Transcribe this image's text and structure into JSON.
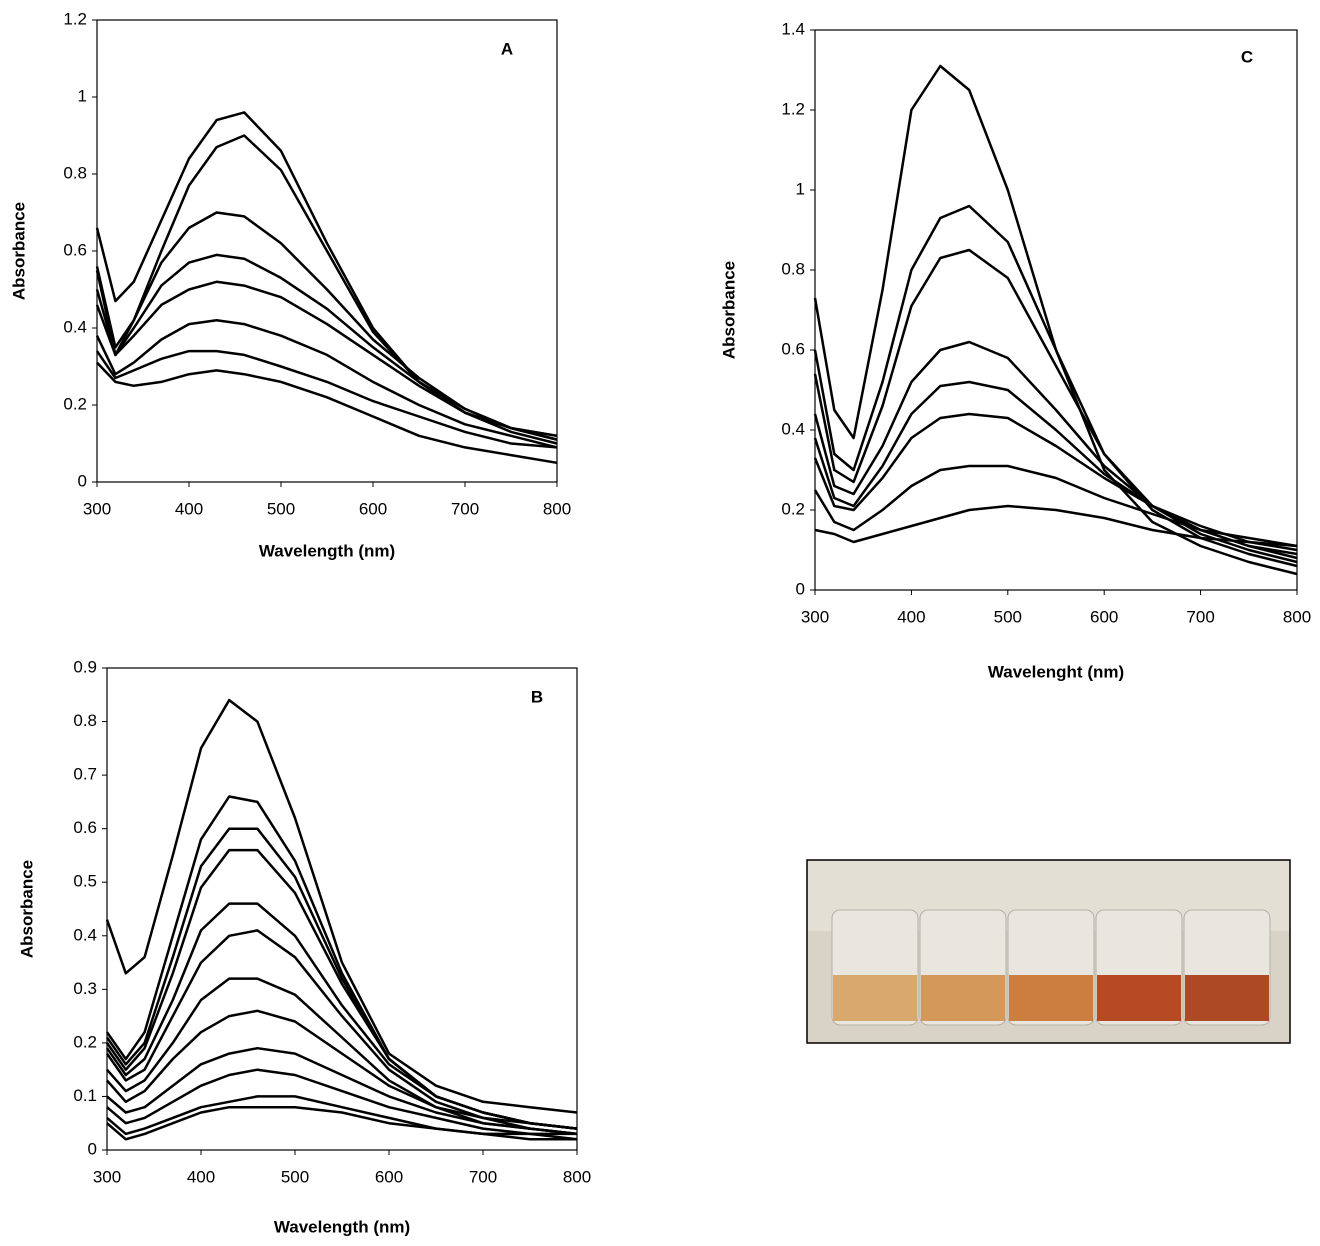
{
  "chart_data": [
    {
      "type": "line",
      "annotation": "A",
      "xlabel": "Wavelength (nm)",
      "ylabel": "Absorbance",
      "color": "#000000",
      "x": [
        300,
        320,
        340,
        370,
        400,
        430,
        460,
        500,
        550,
        600,
        650,
        700,
        750,
        800
      ],
      "series": [
        {
          "values": [
            0.66,
            0.47,
            0.52,
            0.68,
            0.84,
            0.94,
            0.96,
            0.86,
            0.62,
            0.4,
            0.26,
            0.18,
            0.14,
            0.11
          ]
        },
        {
          "values": [
            0.56,
            0.35,
            0.42,
            0.6,
            0.77,
            0.87,
            0.9,
            0.81,
            0.6,
            0.39,
            0.26,
            0.18,
            0.14,
            0.12
          ]
        },
        {
          "values": [
            0.55,
            0.33,
            0.42,
            0.57,
            0.66,
            0.7,
            0.69,
            0.62,
            0.5,
            0.37,
            0.27,
            0.19,
            0.14,
            0.12
          ]
        },
        {
          "values": [
            0.5,
            0.33,
            0.4,
            0.51,
            0.57,
            0.59,
            0.58,
            0.53,
            0.45,
            0.35,
            0.26,
            0.19,
            0.14,
            0.11
          ]
        },
        {
          "values": [
            0.46,
            0.33,
            0.38,
            0.46,
            0.5,
            0.52,
            0.51,
            0.48,
            0.41,
            0.33,
            0.25,
            0.18,
            0.13,
            0.1
          ]
        },
        {
          "values": [
            0.38,
            0.28,
            0.31,
            0.37,
            0.41,
            0.42,
            0.41,
            0.38,
            0.33,
            0.26,
            0.2,
            0.15,
            0.12,
            0.09
          ]
        },
        {
          "values": [
            0.34,
            0.27,
            0.29,
            0.32,
            0.34,
            0.34,
            0.33,
            0.3,
            0.26,
            0.21,
            0.17,
            0.13,
            0.1,
            0.09
          ]
        },
        {
          "values": [
            0.31,
            0.26,
            0.25,
            0.26,
            0.28,
            0.29,
            0.28,
            0.26,
            0.22,
            0.17,
            0.12,
            0.09,
            0.07,
            0.05
          ]
        }
      ],
      "xlim": [
        300,
        800
      ],
      "xticks": [
        300,
        400,
        500,
        600,
        700,
        800
      ],
      "ylim": [
        0,
        1.2
      ],
      "yticks": [
        0,
        0.2,
        0.4,
        0.6,
        0.8,
        1,
        1.2
      ]
    },
    {
      "type": "line",
      "annotation": "B",
      "xlabel": "Wavelength (nm)",
      "ylabel": "Absorbance",
      "color": "#000000",
      "x": [
        300,
        320,
        340,
        370,
        400,
        430,
        460,
        500,
        550,
        600,
        650,
        700,
        750,
        800
      ],
      "series": [
        {
          "values": [
            0.43,
            0.33,
            0.36,
            0.55,
            0.75,
            0.84,
            0.8,
            0.62,
            0.35,
            0.18,
            0.12,
            0.09,
            0.08,
            0.07
          ]
        },
        {
          "values": [
            0.22,
            0.17,
            0.22,
            0.4,
            0.58,
            0.66,
            0.65,
            0.54,
            0.33,
            0.17,
            0.1,
            0.07,
            0.05,
            0.04
          ]
        },
        {
          "values": [
            0.21,
            0.16,
            0.2,
            0.36,
            0.53,
            0.6,
            0.6,
            0.51,
            0.32,
            0.17,
            0.1,
            0.07,
            0.05,
            0.04
          ]
        },
        {
          "values": [
            0.2,
            0.15,
            0.19,
            0.33,
            0.49,
            0.56,
            0.56,
            0.48,
            0.31,
            0.17,
            0.1,
            0.07,
            0.05,
            0.04
          ]
        },
        {
          "values": [
            0.19,
            0.14,
            0.17,
            0.28,
            0.41,
            0.46,
            0.46,
            0.4,
            0.27,
            0.16,
            0.1,
            0.07,
            0.05,
            0.04
          ]
        },
        {
          "values": [
            0.18,
            0.13,
            0.15,
            0.25,
            0.35,
            0.4,
            0.41,
            0.36,
            0.25,
            0.15,
            0.09,
            0.06,
            0.05,
            0.04
          ]
        },
        {
          "values": [
            0.15,
            0.11,
            0.13,
            0.2,
            0.28,
            0.32,
            0.32,
            0.29,
            0.21,
            0.13,
            0.08,
            0.06,
            0.04,
            0.03
          ]
        },
        {
          "values": [
            0.13,
            0.09,
            0.11,
            0.17,
            0.22,
            0.25,
            0.26,
            0.24,
            0.18,
            0.12,
            0.08,
            0.05,
            0.04,
            0.03
          ]
        },
        {
          "values": [
            0.1,
            0.07,
            0.08,
            0.12,
            0.16,
            0.18,
            0.19,
            0.18,
            0.14,
            0.1,
            0.07,
            0.05,
            0.04,
            0.03
          ]
        },
        {
          "values": [
            0.08,
            0.05,
            0.06,
            0.09,
            0.12,
            0.14,
            0.15,
            0.14,
            0.11,
            0.08,
            0.06,
            0.04,
            0.03,
            0.03
          ]
        },
        {
          "values": [
            0.06,
            0.03,
            0.04,
            0.06,
            0.08,
            0.09,
            0.1,
            0.1,
            0.08,
            0.06,
            0.04,
            0.03,
            0.03,
            0.02
          ]
        },
        {
          "values": [
            0.05,
            0.02,
            0.03,
            0.05,
            0.07,
            0.08,
            0.08,
            0.08,
            0.07,
            0.05,
            0.04,
            0.03,
            0.02,
            0.02
          ]
        }
      ],
      "xlim": [
        300,
        800
      ],
      "xticks": [
        300,
        400,
        500,
        600,
        700,
        800
      ],
      "ylim": [
        0,
        0.9
      ],
      "yticks": [
        0,
        0.1,
        0.2,
        0.3,
        0.4,
        0.5,
        0.6,
        0.7,
        0.8,
        0.9
      ]
    },
    {
      "type": "line",
      "annotation": "C",
      "xlabel": "Wavelenght (nm)",
      "ylabel": "Absorbance",
      "color": "#000000",
      "x": [
        300,
        320,
        340,
        370,
        400,
        430,
        460,
        500,
        550,
        600,
        650,
        700,
        750,
        800
      ],
      "series": [
        {
          "values": [
            0.73,
            0.45,
            0.38,
            0.75,
            1.2,
            1.31,
            1.25,
            1.0,
            0.6,
            0.3,
            0.17,
            0.11,
            0.07,
            0.04
          ]
        },
        {
          "values": [
            0.6,
            0.34,
            0.3,
            0.52,
            0.8,
            0.93,
            0.96,
            0.87,
            0.6,
            0.34,
            0.2,
            0.13,
            0.09,
            0.06
          ]
        },
        {
          "values": [
            0.54,
            0.3,
            0.27,
            0.46,
            0.71,
            0.83,
            0.85,
            0.78,
            0.56,
            0.34,
            0.21,
            0.14,
            0.1,
            0.07
          ]
        },
        {
          "values": [
            0.44,
            0.26,
            0.24,
            0.36,
            0.52,
            0.6,
            0.62,
            0.58,
            0.45,
            0.31,
            0.21,
            0.15,
            0.11,
            0.08
          ]
        },
        {
          "values": [
            0.38,
            0.23,
            0.21,
            0.31,
            0.44,
            0.51,
            0.52,
            0.5,
            0.4,
            0.29,
            0.21,
            0.15,
            0.11,
            0.09
          ]
        },
        {
          "values": [
            0.33,
            0.21,
            0.2,
            0.28,
            0.38,
            0.43,
            0.44,
            0.43,
            0.36,
            0.28,
            0.21,
            0.16,
            0.12,
            0.1
          ]
        },
        {
          "values": [
            0.25,
            0.17,
            0.15,
            0.2,
            0.26,
            0.3,
            0.31,
            0.31,
            0.28,
            0.23,
            0.19,
            0.15,
            0.13,
            0.11
          ]
        },
        {
          "values": [
            0.15,
            0.14,
            0.12,
            0.14,
            0.16,
            0.18,
            0.2,
            0.21,
            0.2,
            0.18,
            0.15,
            0.13,
            0.12,
            0.11
          ]
        }
      ],
      "xlim": [
        300,
        800
      ],
      "xticks": [
        300,
        400,
        500,
        600,
        700,
        800
      ],
      "ylim": [
        0,
        1.4
      ],
      "yticks": [
        0,
        0.2,
        0.4,
        0.6,
        0.8,
        1,
        1.2,
        1.4
      ]
    }
  ]
}
